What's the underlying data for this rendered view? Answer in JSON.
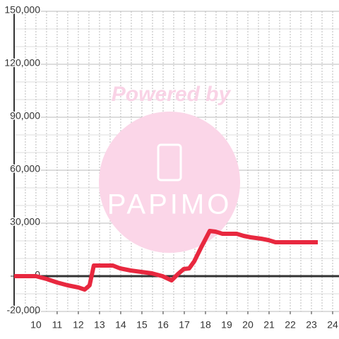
{
  "chart_data": {
    "type": "line",
    "watermark": {
      "top": "Powered by",
      "brand": "PAPIMO"
    },
    "xlim": [
      8.97,
      24.3
    ],
    "ylim": [
      -20000,
      150000
    ],
    "xticks": [
      10,
      11,
      12,
      13,
      14,
      15,
      16,
      17,
      18,
      19,
      20,
      21,
      22,
      23,
      24
    ],
    "yticks": [
      {
        "value": -20000,
        "label": "-20,000"
      },
      0,
      {
        "value": 30000,
        "label": "30,000"
      },
      {
        "value": 60000,
        "label": "60,000"
      },
      {
        "value": 90000,
        "label": "90,000"
      },
      {
        "value": 120000,
        "label": "120,000"
      },
      {
        "value": 150000,
        "label": "150,000"
      }
    ],
    "ygrid": [
      -10000,
      10000,
      20000,
      40000,
      50000,
      70000,
      80000,
      100000,
      110000,
      130000,
      140000
    ],
    "xgrid": [
      9.5,
      10,
      10.5,
      11,
      11.5,
      12,
      12.5,
      13,
      13.5,
      14,
      14.5,
      15,
      15.5,
      16,
      16.5,
      17,
      17.5,
      18,
      18.5,
      19,
      19.5,
      20,
      20.5,
      21,
      21.5,
      22,
      22.5,
      23,
      23.5,
      24
    ],
    "grid": true,
    "series": [
      {
        "color": "#e8283f",
        "x": [
          8.97,
          10,
          10.5,
          11,
          11.5,
          12,
          12.3,
          12.53,
          12.73,
          13.63,
          13.97,
          14.47,
          14.97,
          15.47,
          15.97,
          16.4,
          16.7,
          16.97,
          17.23,
          17.47,
          17.8,
          18.2,
          18.47,
          18.8,
          19.47,
          19.8,
          20.13,
          20.63,
          20.97,
          21.3,
          23.3
        ],
        "values": [
          0,
          0,
          -1600,
          -3600,
          -5200,
          -6400,
          -7600,
          -5200,
          6000,
          6000,
          4400,
          3200,
          2400,
          1600,
          0,
          -2400,
          1200,
          4000,
          4400,
          8400,
          16400,
          25600,
          25200,
          24000,
          24000,
          22800,
          22000,
          21200,
          20400,
          19200,
          19200
        ]
      }
    ]
  }
}
